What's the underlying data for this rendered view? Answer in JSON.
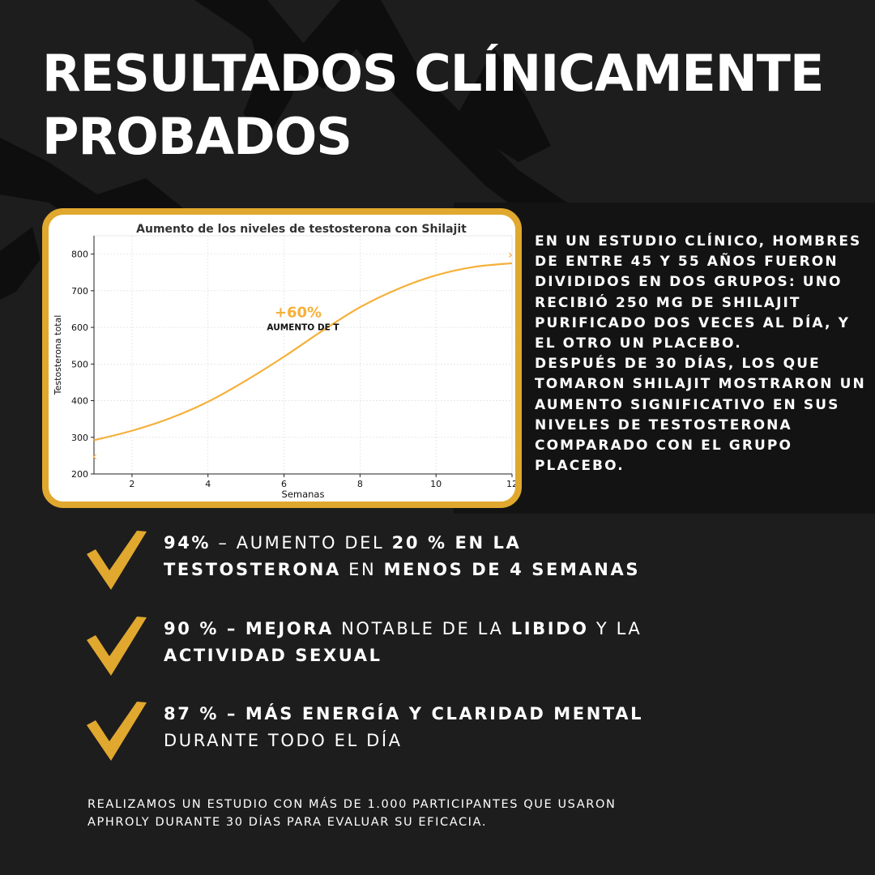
{
  "title": {
    "line1": "RESULTADOS CLÍNICAMENTE",
    "line2": "PROBADOS"
  },
  "study": {
    "text": "EN UN ESTUDIO CLÍNICO, HOMBRES DE ENTRE 45 Y 55 AÑOS FUERON DIVIDIDOS EN DOS GRUPOS: UNO RECIBIÓ 250 MG DE SHILAJIT PURIFICADO DOS VECES AL DÍA, Y EL OTRO UN PLACEBO.\n DESPUÉS DE 30 DÍAS, LOS QUE TOMARON SHILAJIT MOSTRARON UN AUMENTO SIGNIFICATIVO EN SUS NIVELES DE TESTOSTERONA COMPARADO CON EL GRUPO PLACEBO."
  },
  "bullets": [
    {
      "l1": [
        {
          "t": "94%",
          "b": true
        },
        {
          "t": " – AUMENTO DEL ",
          "b": false
        },
        {
          "t": "20 % EN LA",
          "b": true
        }
      ],
      "l2": [
        {
          "t": "TESTOSTERONA",
          "b": true
        },
        {
          "t": " EN ",
          "b": false
        },
        {
          "t": "MENOS DE 4 SEMANAS",
          "b": true
        }
      ]
    },
    {
      "l1": [
        {
          "t": "90 % – MEJORA",
          "b": true
        },
        {
          "t": " NOTABLE DE LA ",
          "b": false
        },
        {
          "t": "LIBIDO",
          "b": true
        },
        {
          "t": " Y LA",
          "b": false
        }
      ],
      "l2": [
        {
          "t": "ACTIVIDAD SEXUAL",
          "b": true
        }
      ]
    },
    {
      "l1": [
        {
          "t": "87 % – MÁS ENERGÍA Y CLARIDAD MENTAL",
          "b": true
        }
      ],
      "l2": [
        {
          "t": "DURANTE TODO EL DÍA",
          "b": false
        }
      ]
    }
  ],
  "footer": {
    "line1": "REALIZAMOS UN ESTUDIO CON MÁS DE 1.000 PARTICIPANTES QUE USARON",
    "line2": "APHROLY DURANTE 30 DÍAS PARA EVALUAR SU EFICACIA."
  },
  "icons": {
    "bullet": "checkmark-icon"
  },
  "colors": {
    "accent": "#e0a82e",
    "line": "#f5b038",
    "background": "#1e1d1d",
    "text": "#ffffff"
  },
  "chart_data": {
    "type": "line",
    "title": "Aumento de los niveles de testosterona con Shilajit",
    "xlabel": "Semanas",
    "ylabel": "Testosterona total",
    "xlim": [
      1,
      12
    ],
    "ylim": [
      200,
      850
    ],
    "xticks": [
      2,
      4,
      6,
      8,
      10,
      12
    ],
    "yticks": [
      200,
      300,
      400,
      500,
      600,
      700,
      800
    ],
    "grid": true,
    "series": [
      {
        "x": [
          1,
          2,
          3,
          4,
          5,
          6,
          7,
          8,
          9,
          10,
          11,
          12
        ],
        "values": [
          292,
          318,
          352,
          397,
          455,
          520,
          590,
          655,
          705,
          742,
          765,
          775
        ]
      }
    ],
    "annotation": {
      "text": "+60%",
      "subtext": "AUMENTO DE T",
      "x": 6.5,
      "y": 630
    },
    "markers": {
      "start": "‹",
      "end": "›"
    }
  }
}
